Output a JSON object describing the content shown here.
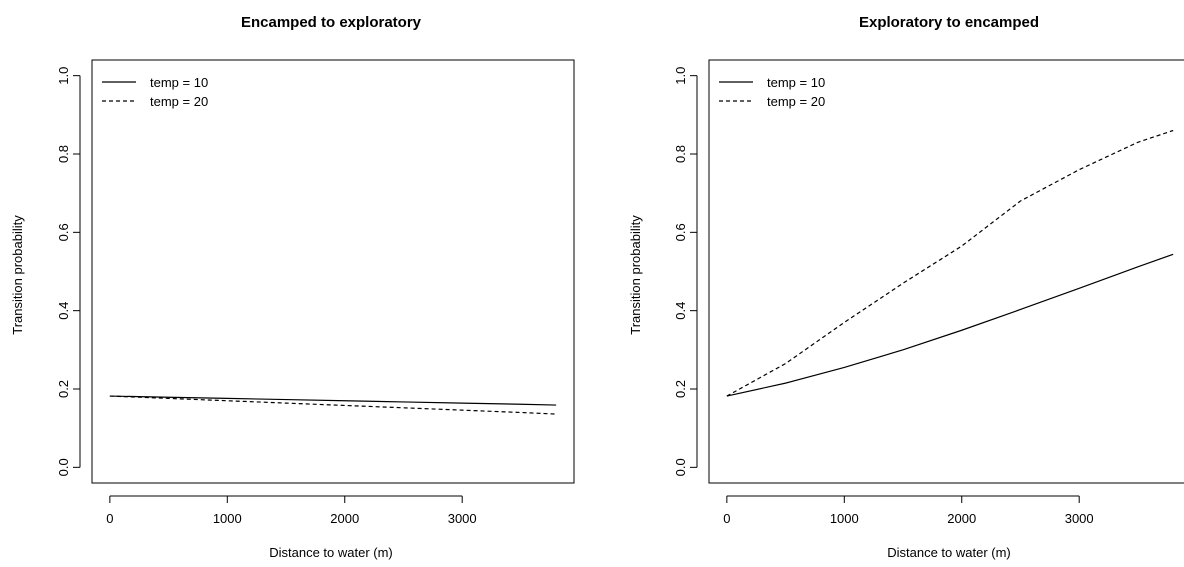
{
  "chart_data": [
    {
      "type": "line",
      "title": "Encamped to exploratory",
      "xlabel": "Distance to water (m)",
      "ylabel": "Transition probability",
      "xlim": [
        0,
        3800
      ],
      "ylim": [
        0,
        1
      ],
      "x_ticks": [
        0,
        1000,
        2000,
        3000
      ],
      "x_tick_labels": [
        "0",
        "1000",
        "2000",
        "3000"
      ],
      "y_ticks": [
        0,
        0.2,
        0.4,
        0.6,
        0.8,
        1.0
      ],
      "y_tick_labels": [
        "0.0",
        "0.2",
        "0.4",
        "0.6",
        "0.8",
        "1.0"
      ],
      "legend": "top-left",
      "x": [
        0,
        500,
        1000,
        1500,
        2000,
        2500,
        3000,
        3500,
        3800
      ],
      "series": [
        {
          "name": "temp = 10",
          "dash": "solid",
          "values": [
            0.182,
            0.179,
            0.176,
            0.173,
            0.17,
            0.167,
            0.164,
            0.161,
            0.159
          ]
        },
        {
          "name": "temp = 20",
          "dash": "dashed",
          "values": [
            0.182,
            0.176,
            0.17,
            0.164,
            0.158,
            0.152,
            0.146,
            0.14,
            0.136
          ]
        }
      ]
    },
    {
      "type": "line",
      "title": "Exploratory to encamped",
      "xlabel": "Distance to water (m)",
      "ylabel": "Transition probability",
      "xlim": [
        0,
        3800
      ],
      "ylim": [
        0,
        1
      ],
      "x_ticks": [
        0,
        1000,
        2000,
        3000
      ],
      "x_tick_labels": [
        "0",
        "1000",
        "2000",
        "3000"
      ],
      "y_ticks": [
        0,
        0.2,
        0.4,
        0.6,
        0.8,
        1.0
      ],
      "y_tick_labels": [
        "0.0",
        "0.2",
        "0.4",
        "0.6",
        "0.8",
        "1.0"
      ],
      "legend": "top-left",
      "x": [
        0,
        500,
        1000,
        1500,
        2000,
        2500,
        3000,
        3500,
        3800
      ],
      "series": [
        {
          "name": "temp = 10",
          "dash": "solid",
          "values": [
            0.182,
            0.215,
            0.255,
            0.3,
            0.35,
            0.403,
            0.457,
            0.512,
            0.544
          ]
        },
        {
          "name": "temp = 20",
          "dash": "dashed",
          "values": [
            0.182,
            0.265,
            0.37,
            0.47,
            0.565,
            0.68,
            0.76,
            0.83,
            0.86
          ]
        }
      ]
    }
  ]
}
